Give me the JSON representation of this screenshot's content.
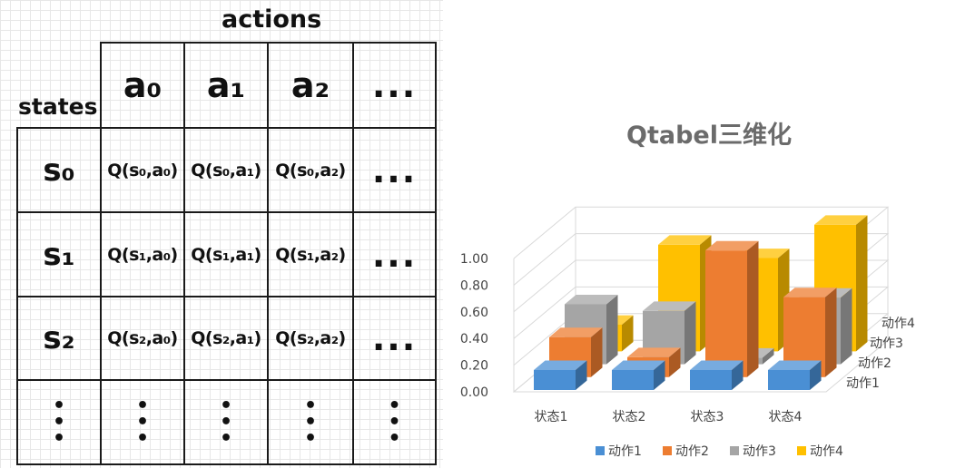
{
  "qtable": {
    "actions_label": "actions",
    "states_label": "states",
    "action_headers": [
      "a₀",
      "a₁",
      "a₂",
      "..."
    ],
    "rows": [
      {
        "state": "s₀",
        "cells": [
          "Q(s₀,a₀)",
          "Q(s₀,a₁)",
          "Q(s₀,a₂)",
          "..."
        ]
      },
      {
        "state": "s₁",
        "cells": [
          "Q(s₁,a₀)",
          "Q(s₁,a₁)",
          "Q(s₁,a₂)",
          "..."
        ]
      },
      {
        "state": "s₂",
        "cells": [
          "Q(s₂,a₀)",
          "Q(s₂,a₁)",
          "Q(s₂,a₂)",
          "..."
        ]
      }
    ],
    "vertical_dots": "•\n•\n•"
  },
  "chart_data": {
    "type": "bar",
    "title": "Qtabel三维化",
    "categories": [
      "状态1",
      "状态2",
      "状态3",
      "状态4"
    ],
    "depth_categories": [
      "动作1",
      "动作2",
      "动作3",
      "动作4"
    ],
    "series": [
      {
        "name": "动作1",
        "color": "#4a8fd4",
        "values": [
          0.15,
          0.15,
          0.15,
          0.15
        ]
      },
      {
        "name": "动作2",
        "color": "#ed7d31",
        "values": [
          0.3,
          0.15,
          0.95,
          0.6
        ]
      },
      {
        "name": "动作3",
        "color": "#a5a5a5",
        "values": [
          0.45,
          0.4,
          0.05,
          0.5
        ]
      },
      {
        "name": "动作4",
        "color": "#ffc000",
        "values": [
          0.2,
          0.8,
          0.7,
          0.95
        ]
      }
    ],
    "yticks": [
      "0.00",
      "0.20",
      "0.40",
      "0.60",
      "0.80",
      "1.00"
    ],
    "ylim": [
      0,
      1.0
    ],
    "grid": true,
    "legend": "bottom"
  }
}
